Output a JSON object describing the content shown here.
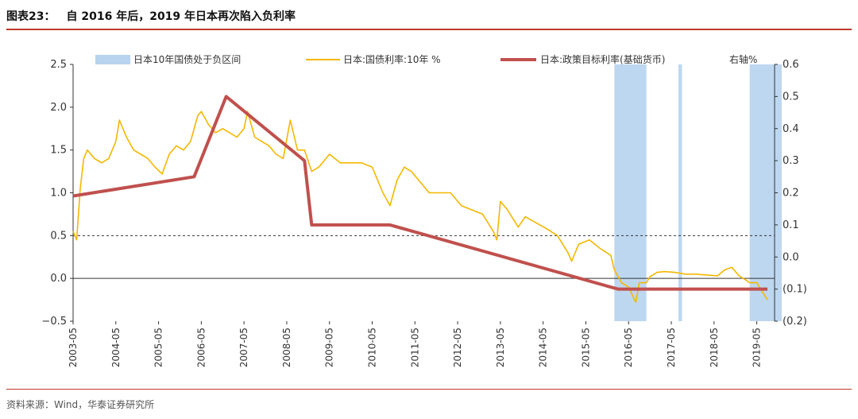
{
  "header": {
    "figure_label": "图表23：",
    "title": "自 2016 年后，2019 年日本再次陷入负利率"
  },
  "source": "资料来源：Wind，华泰证券研究所",
  "chart_data": {
    "type": "line",
    "title": "自 2016 年后，2019 年日本再次陷入负利率",
    "left_axis": {
      "ylim": [
        -0.5,
        2.5
      ],
      "ticks": [
        "2.5",
        "2.0",
        "1.5",
        "1.0",
        "0.5",
        "0.0",
        "−0.5"
      ]
    },
    "right_axis": {
      "ylim": [
        -0.2,
        0.6
      ],
      "ticks": [
        "0.6",
        "0.5",
        "0.4",
        "0.3",
        "0.2",
        "0.1",
        "0.0",
        "(0.1)",
        "(0.2)"
      ],
      "label": "右轴%"
    },
    "x_ticks": [
      "2003-05",
      "2004-05",
      "2005-05",
      "2006-05",
      "2007-05",
      "2008-05",
      "2009-05",
      "2010-05",
      "2011-05",
      "2012-05",
      "2013-05",
      "2014-05",
      "2015-05",
      "2016-05",
      "2017-05",
      "2018-05",
      "2019-05"
    ],
    "reference_line": {
      "axis": "left",
      "y": 0.5,
      "style": "dashed"
    },
    "zero_line": {
      "axis": "left",
      "y": 0.0
    },
    "legend": [
      {
        "name": "日本10年国债处于负区间",
        "kind": "band",
        "color": "#b7d3ee"
      },
      {
        "name": "日本:国债利率:10年 %",
        "kind": "line",
        "color": "#f5b700"
      },
      {
        "name": "日本:政策目标利率(基础货币)",
        "kind": "line",
        "color": "#c0504d"
      }
    ],
    "negative_bands": [
      [
        "2016-01",
        "2016-10"
      ],
      [
        "2017-07",
        "2017-08"
      ],
      [
        "2019-03",
        "2019-12"
      ]
    ],
    "series": [
      {
        "name": "日本:国债利率:10年 %",
        "axis": "left",
        "color": "#f5b700",
        "points": [
          [
            "2003-05",
            0.55
          ],
          [
            "2003-06",
            0.45
          ],
          [
            "2003-07",
            1.05
          ],
          [
            "2003-08",
            1.4
          ],
          [
            "2003-09",
            1.5
          ],
          [
            "2003-11",
            1.4
          ],
          [
            "2004-01",
            1.35
          ],
          [
            "2004-03",
            1.4
          ],
          [
            "2004-05",
            1.6
          ],
          [
            "2004-06",
            1.85
          ],
          [
            "2004-08",
            1.65
          ],
          [
            "2004-10",
            1.5
          ],
          [
            "2004-12",
            1.45
          ],
          [
            "2005-02",
            1.4
          ],
          [
            "2005-04",
            1.3
          ],
          [
            "2005-06",
            1.22
          ],
          [
            "2005-08",
            1.45
          ],
          [
            "2005-10",
            1.55
          ],
          [
            "2005-12",
            1.5
          ],
          [
            "2006-02",
            1.6
          ],
          [
            "2006-04",
            1.9
          ],
          [
            "2006-05",
            1.95
          ],
          [
            "2006-07",
            1.8
          ],
          [
            "2006-09",
            1.7
          ],
          [
            "2006-11",
            1.75
          ],
          [
            "2007-01",
            1.7
          ],
          [
            "2007-03",
            1.65
          ],
          [
            "2007-05",
            1.75
          ],
          [
            "2007-06",
            1.95
          ],
          [
            "2007-08",
            1.65
          ],
          [
            "2007-10",
            1.6
          ],
          [
            "2007-12",
            1.55
          ],
          [
            "2008-02",
            1.45
          ],
          [
            "2008-04",
            1.4
          ],
          [
            "2008-06",
            1.85
          ],
          [
            "2008-08",
            1.5
          ],
          [
            "2008-10",
            1.5
          ],
          [
            "2008-12",
            1.25
          ],
          [
            "2009-02",
            1.3
          ],
          [
            "2009-05",
            1.45
          ],
          [
            "2009-08",
            1.35
          ],
          [
            "2009-11",
            1.35
          ],
          [
            "2010-02",
            1.35
          ],
          [
            "2010-05",
            1.3
          ],
          [
            "2010-08",
            1.0
          ],
          [
            "2010-10",
            0.85
          ],
          [
            "2010-12",
            1.15
          ],
          [
            "2011-02",
            1.3
          ],
          [
            "2011-04",
            1.25
          ],
          [
            "2011-06",
            1.15
          ],
          [
            "2011-09",
            1.0
          ],
          [
            "2011-12",
            1.0
          ],
          [
            "2012-03",
            1.0
          ],
          [
            "2012-06",
            0.85
          ],
          [
            "2012-09",
            0.8
          ],
          [
            "2012-12",
            0.75
          ],
          [
            "2013-03",
            0.55
          ],
          [
            "2013-04",
            0.45
          ],
          [
            "2013-05",
            0.9
          ],
          [
            "2013-07",
            0.8
          ],
          [
            "2013-10",
            0.6
          ],
          [
            "2013-12",
            0.72
          ],
          [
            "2014-03",
            0.65
          ],
          [
            "2014-06",
            0.58
          ],
          [
            "2014-09",
            0.5
          ],
          [
            "2014-12",
            0.3
          ],
          [
            "2015-01",
            0.2
          ],
          [
            "2015-03",
            0.4
          ],
          [
            "2015-06",
            0.45
          ],
          [
            "2015-09",
            0.35
          ],
          [
            "2015-12",
            0.27
          ],
          [
            "2016-01",
            0.1
          ],
          [
            "2016-03",
            -0.05
          ],
          [
            "2016-05",
            -0.1
          ],
          [
            "2016-07",
            -0.28
          ],
          [
            "2016-08",
            -0.05
          ],
          [
            "2016-10",
            -0.05
          ],
          [
            "2016-11",
            0.02
          ],
          [
            "2017-01",
            0.07
          ],
          [
            "2017-03",
            0.08
          ],
          [
            "2017-06",
            0.07
          ],
          [
            "2017-09",
            0.05
          ],
          [
            "2017-12",
            0.05
          ],
          [
            "2018-03",
            0.04
          ],
          [
            "2018-06",
            0.03
          ],
          [
            "2018-08",
            0.1
          ],
          [
            "2018-10",
            0.13
          ],
          [
            "2018-12",
            0.03
          ],
          [
            "2019-02",
            -0.02
          ],
          [
            "2019-03",
            -0.05
          ],
          [
            "2019-05",
            -0.05
          ],
          [
            "2019-06",
            -0.12
          ],
          [
            "2019-08",
            -0.25
          ]
        ]
      },
      {
        "name": "日本:政策目标利率(基础货币)",
        "axis": "right",
        "color": "#c0504d",
        "points": [
          [
            "2003-05",
            0.19
          ],
          [
            "2006-03",
            0.25
          ],
          [
            "2006-12",
            0.5
          ],
          [
            "2008-10",
            0.3
          ],
          [
            "2008-12",
            0.1
          ],
          [
            "2010-10",
            0.1
          ],
          [
            "2016-02",
            -0.1
          ],
          [
            "2019-08",
            -0.1
          ]
        ]
      }
    ]
  }
}
